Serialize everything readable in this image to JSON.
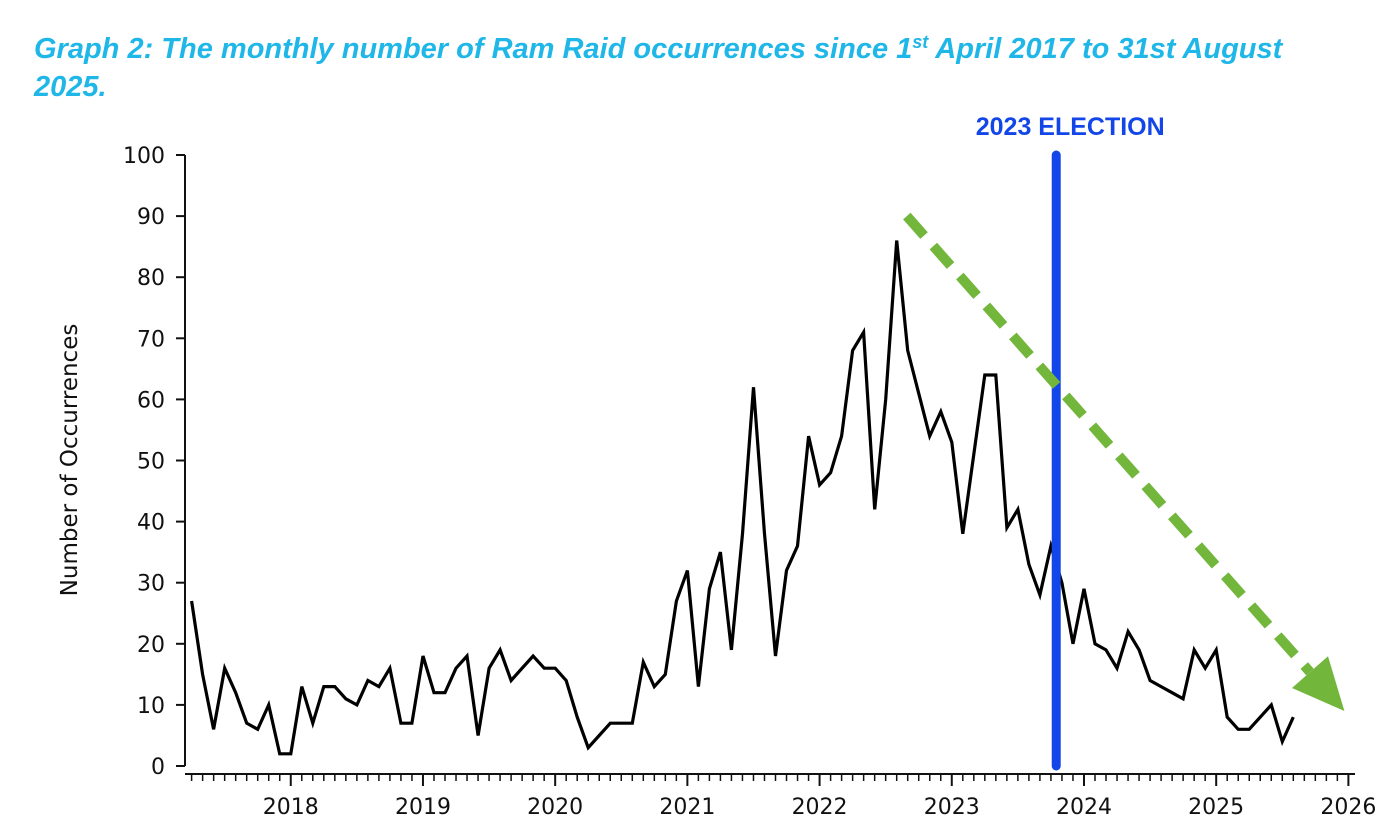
{
  "title": {
    "pre": "Graph 2: The monthly number of Ram Raid occurrences since 1",
    "sup": "st",
    "post": " April 2017 to 31st August 2025."
  },
  "colors": {
    "title": "#1fb6e8",
    "series": "#000000",
    "election": "#1346e8",
    "trend": "#72b63c"
  },
  "chart_data": {
    "type": "line",
    "ylabel": "Number of Occurrences",
    "xlabel": "",
    "ylim": [
      0,
      100
    ],
    "xlim": [
      2017.2,
      2026.05
    ],
    "yticks": [
      0,
      10,
      20,
      30,
      40,
      50,
      60,
      70,
      80,
      90,
      100
    ],
    "xticks": [
      2018,
      2019,
      2020,
      2021,
      2022,
      2023,
      2024,
      2025,
      2026
    ],
    "series": [
      {
        "name": "Monthly Ram Raid occurrences",
        "start_year": 2017,
        "start_month": 4,
        "values": [
          27,
          15,
          6,
          16,
          12,
          7,
          6,
          10,
          2,
          2,
          13,
          7,
          13,
          13,
          11,
          10,
          14,
          13,
          16,
          7,
          7,
          18,
          12,
          12,
          16,
          18,
          5,
          16,
          19,
          14,
          16,
          18,
          16,
          16,
          14,
          8,
          3,
          5,
          7,
          7,
          7,
          17,
          13,
          15,
          27,
          32,
          13,
          29,
          35,
          19,
          38,
          62,
          38,
          18,
          32,
          36,
          54,
          46,
          48,
          54,
          68,
          71,
          42,
          60,
          86,
          68,
          61,
          54,
          58,
          53,
          38,
          51,
          64,
          64,
          39,
          42,
          33,
          28,
          36,
          30,
          20,
          29,
          20,
          19,
          16,
          22,
          19,
          14,
          13,
          12,
          11,
          19,
          16,
          19,
          8,
          6,
          6,
          8,
          10,
          4,
          8
        ]
      }
    ],
    "annotations": [
      {
        "type": "vline",
        "label": "2023 ELECTION",
        "x": 2023.79,
        "y_top": 100,
        "y_bottom": 0
      },
      {
        "type": "arrow",
        "label": "trend",
        "from": {
          "x": 2022.66,
          "y": 90
        },
        "to": {
          "x": 2025.97,
          "y": 9
        }
      }
    ]
  }
}
